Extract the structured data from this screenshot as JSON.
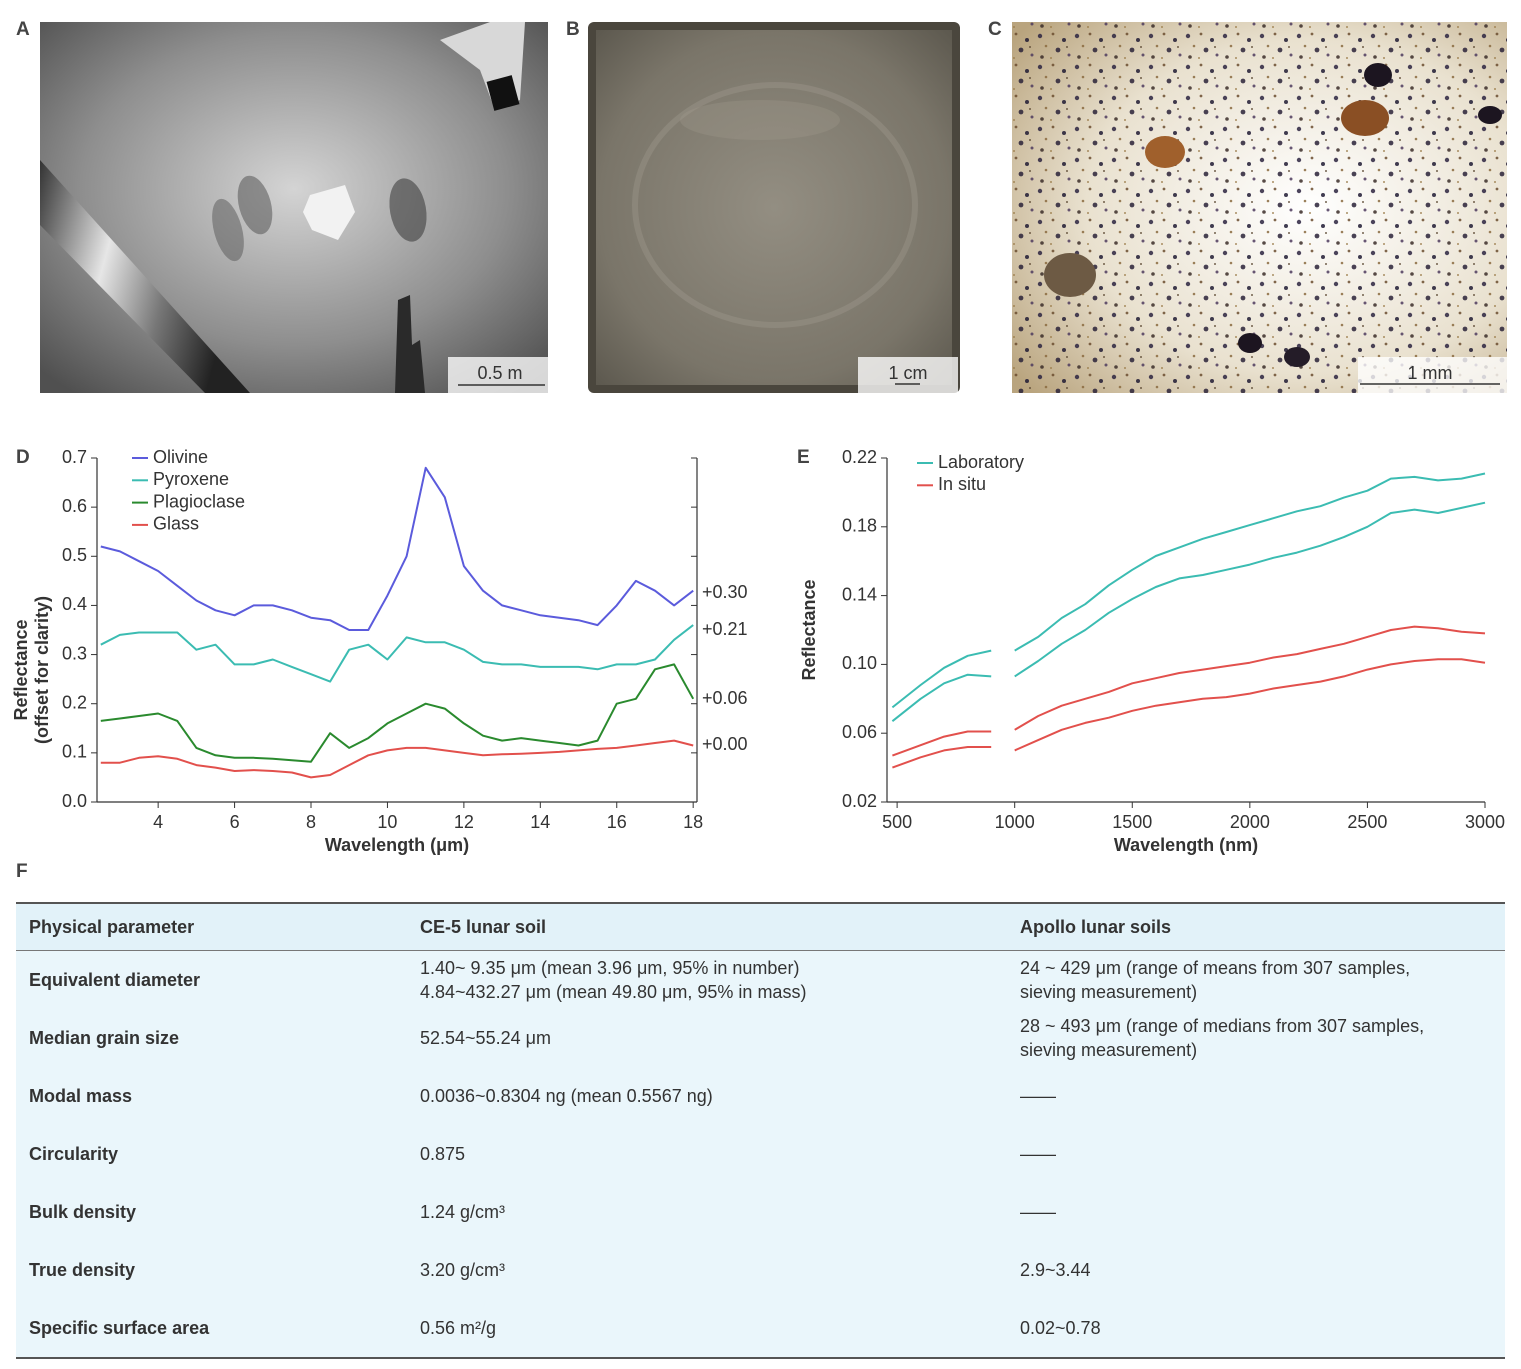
{
  "panels": [
    {
      "label": "A",
      "scale_bar": "0.5 m"
    },
    {
      "label": "B",
      "scale_bar": "1 cm"
    },
    {
      "label": "C",
      "scale_bar": "1 mm"
    }
  ],
  "chart_data": [
    {
      "type": "line",
      "panel_label": "D",
      "xlabel": "Wavelength (μm)",
      "ylabel": [
        "Reflectance",
        "(offset for clarity)"
      ],
      "xlim": [
        2.4,
        18.1
      ],
      "ylim": [
        0,
        0.7
      ],
      "xticks": [
        4,
        6,
        8,
        10,
        12,
        14,
        16,
        18
      ],
      "yticks": [
        {
          "value": 0,
          "label": "0.0"
        },
        0.1,
        0.2,
        0.3,
        0.4,
        0.5,
        0.6,
        0.7
      ],
      "right_axis": true,
      "legend": "upper left",
      "x": [
        2.5,
        3,
        3.5,
        4,
        4.5,
        5,
        5.5,
        6,
        6.5,
        7,
        7.5,
        8,
        8.5,
        9,
        9.5,
        10,
        10.5,
        11,
        11.5,
        12,
        12.5,
        13,
        13.5,
        14,
        14.5,
        15,
        15.5,
        16,
        16.5,
        17,
        17.5,
        18
      ],
      "series": [
        {
          "name": "Olivine",
          "color": "#5b5bdc",
          "offset_label": "+0.30",
          "values": [
            0.52,
            0.51,
            0.49,
            0.47,
            0.44,
            0.41,
            0.39,
            0.38,
            0.4,
            0.4,
            0.39,
            0.375,
            0.37,
            0.35,
            0.35,
            0.42,
            0.5,
            0.68,
            0.62,
            0.48,
            0.43,
            0.4,
            0.39,
            0.38,
            0.375,
            0.37,
            0.36,
            0.4,
            0.45,
            0.43,
            0.4,
            0.43
          ]
        },
        {
          "name": "Pyroxene",
          "color": "#3bbcb2",
          "offset_label": "+0.21",
          "values": [
            0.32,
            0.34,
            0.345,
            0.345,
            0.345,
            0.31,
            0.32,
            0.28,
            0.28,
            0.29,
            0.275,
            0.26,
            0.245,
            0.31,
            0.32,
            0.29,
            0.335,
            0.325,
            0.325,
            0.31,
            0.285,
            0.28,
            0.28,
            0.275,
            0.275,
            0.275,
            0.27,
            0.28,
            0.28,
            0.29,
            0.33,
            0.36
          ]
        },
        {
          "name": "Plagioclase",
          "color": "#2a8a2e",
          "offset_label": "+0.06",
          "values": [
            0.165,
            0.17,
            0.175,
            0.18,
            0.165,
            0.11,
            0.095,
            0.09,
            0.09,
            0.088,
            0.085,
            0.082,
            0.14,
            0.11,
            0.13,
            0.16,
            0.18,
            0.2,
            0.19,
            0.16,
            0.135,
            0.125,
            0.13,
            0.125,
            0.12,
            0.115,
            0.125,
            0.2,
            0.21,
            0.27,
            0.28,
            0.21
          ]
        },
        {
          "name": "Glass",
          "color": "#e2504c",
          "offset_label": "+0.00",
          "values": [
            0.08,
            0.08,
            0.09,
            0.093,
            0.088,
            0.075,
            0.07,
            0.063,
            0.065,
            0.063,
            0.06,
            0.05,
            0.055,
            0.075,
            0.095,
            0.105,
            0.11,
            0.11,
            0.105,
            0.1,
            0.095,
            0.097,
            0.098,
            0.1,
            0.102,
            0.105,
            0.108,
            0.11,
            0.115,
            0.12,
            0.125,
            0.115
          ]
        }
      ]
    },
    {
      "type": "line",
      "panel_label": "E",
      "xlabel": "Wavelength (nm)",
      "ylabel": "Reflectance",
      "xlim": [
        457,
        3000
      ],
      "ylim": [
        0.02,
        0.22
      ],
      "xticks": [
        500,
        1000,
        1500,
        2000,
        2500,
        3000
      ],
      "yticks": [
        0.02,
        0.06,
        {
          "value": 0.1,
          "label": "0.10"
        },
        0.14,
        0.18,
        0.22
      ],
      "right_axis": false,
      "legend": "upper left",
      "x": [
        480,
        600,
        700,
        800,
        900,
        950,
        1000,
        1100,
        1200,
        1300,
        1400,
        1500,
        1600,
        1700,
        1800,
        1900,
        2000,
        2100,
        2200,
        2300,
        2400,
        2500,
        2600,
        2700,
        2800,
        2900,
        3000
      ],
      "series": [
        {
          "name": "Laboratory",
          "color": "#3bbcb2",
          "curves": [
            [
              0.075,
              0.088,
              0.098,
              0.105,
              0.108,
              null,
              0.108,
              0.116,
              0.127,
              0.135,
              0.146,
              0.155,
              0.163,
              0.168,
              0.173,
              0.177,
              0.181,
              0.185,
              0.189,
              0.192,
              0.197,
              0.201,
              0.208,
              0.209,
              0.207,
              0.208,
              0.211
            ],
            [
              0.067,
              0.08,
              0.089,
              0.094,
              0.093,
              null,
              0.093,
              0.102,
              0.112,
              0.12,
              0.13,
              0.138,
              0.145,
              0.15,
              0.152,
              0.155,
              0.158,
              0.162,
              0.165,
              0.169,
              0.174,
              0.18,
              0.188,
              0.19,
              0.188,
              0.191,
              0.194
            ]
          ]
        },
        {
          "name": "In situ",
          "color": "#e2504c",
          "curves": [
            [
              0.047,
              0.053,
              0.058,
              0.061,
              0.061,
              null,
              0.062,
              0.07,
              0.076,
              0.08,
              0.084,
              0.089,
              0.092,
              0.095,
              0.097,
              0.099,
              0.101,
              0.104,
              0.106,
              0.109,
              0.112,
              0.116,
              0.12,
              0.122,
              0.121,
              0.119,
              0.118
            ],
            [
              0.04,
              0.046,
              0.05,
              0.052,
              0.052,
              null,
              0.05,
              0.056,
              0.062,
              0.066,
              0.069,
              0.073,
              0.076,
              0.078,
              0.08,
              0.081,
              0.083,
              0.086,
              0.088,
              0.09,
              0.093,
              0.097,
              0.1,
              0.102,
              0.103,
              0.103,
              0.101
            ]
          ]
        }
      ]
    }
  ],
  "table": {
    "label": "F",
    "header": [
      "Physical parameter",
      "CE-5 lunar soil",
      "Apollo lunar soils"
    ],
    "rows": [
      [
        "Equivalent diameter",
        [
          "1.40~ 9.35 μm (mean 3.96 μm, 95% in number)",
          "4.84~432.27 μm (mean 49.80 μm, 95% in mass)"
        ],
        [
          "24 ~ 429 μm (range of means from 307 samples,",
          "sieving measurement)"
        ]
      ],
      [
        "Median grain size",
        "52.54~55.24 μm",
        [
          "28 ~ 493 μm (range of medians from 307 samples,",
          "sieving measurement)"
        ]
      ],
      [
        "Modal mass",
        "0.0036~0.8304 ng (mean 0.5567 ng)",
        "——"
      ],
      [
        "Circularity",
        "0.875",
        "——"
      ],
      [
        "Bulk density",
        "1.24 g/cm³",
        "——"
      ],
      [
        "True density",
        "3.20 g/cm³",
        "2.9~3.44"
      ],
      [
        "Specific surface area",
        "0.56 m²/g",
        "0.02~0.78"
      ]
    ]
  }
}
